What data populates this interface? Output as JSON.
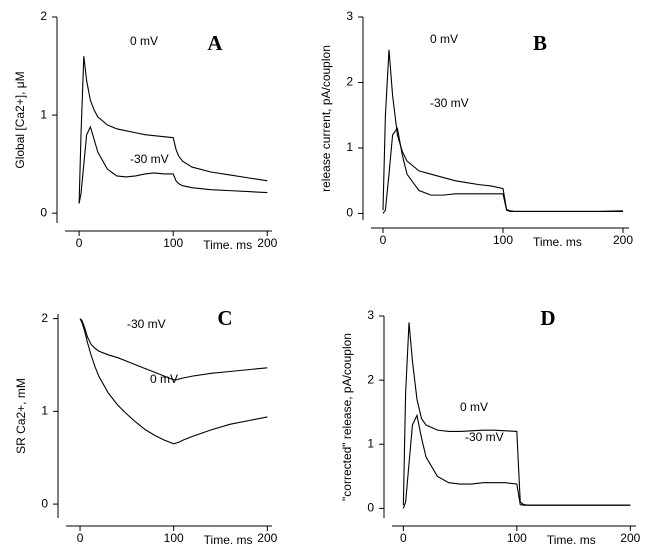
{
  "chart_data": [
    {
      "type": "line",
      "title": "A",
      "y_label": "Global [Ca2+], μM",
      "x_label": "Time. ms",
      "x": [
        0,
        2,
        5,
        8,
        12,
        16,
        20,
        30,
        40,
        50,
        60,
        70,
        80,
        90,
        100,
        103,
        106,
        110,
        120,
        140,
        160,
        180,
        200
      ],
      "series": [
        {
          "name": "0 mV",
          "color": "#000000",
          "values": [
            0.1,
            0.8,
            1.6,
            1.35,
            1.15,
            1.05,
            0.98,
            0.9,
            0.86,
            0.84,
            0.82,
            0.8,
            0.79,
            0.78,
            0.77,
            0.65,
            0.58,
            0.53,
            0.47,
            0.42,
            0.39,
            0.36,
            0.33
          ]
        },
        {
          "name": "-30 mV",
          "color": "#000000",
          "values": [
            0.1,
            0.2,
            0.5,
            0.8,
            0.88,
            0.75,
            0.62,
            0.45,
            0.38,
            0.37,
            0.38,
            0.4,
            0.41,
            0.4,
            0.4,
            0.33,
            0.3,
            0.28,
            0.26,
            0.24,
            0.23,
            0.22,
            0.21
          ]
        }
      ],
      "xlim": [
        -15,
        205
      ],
      "ylim": [
        -0.1,
        2
      ],
      "xticks": [
        0,
        100,
        200
      ],
      "yticks": [
        0,
        1,
        2
      ]
    },
    {
      "type": "line",
      "title": "B",
      "y_label": "release current, pA/couplon",
      "x_label": "Time. ms",
      "x": [
        0,
        2,
        5,
        8,
        12,
        16,
        20,
        30,
        40,
        50,
        60,
        70,
        80,
        90,
        100,
        103,
        106,
        110,
        120,
        140,
        160,
        180,
        200
      ],
      "series": [
        {
          "name": "0 mV",
          "color": "#000000",
          "values": [
            0.05,
            1.5,
            2.5,
            1.8,
            1.2,
            0.95,
            0.8,
            0.65,
            0.6,
            0.55,
            0.5,
            0.47,
            0.44,
            0.42,
            0.38,
            0.06,
            0.04,
            0.03,
            0.03,
            0.03,
            0.03,
            0.03,
            0.04
          ]
        },
        {
          "name": "-30 mV",
          "color": "#000000",
          "values": [
            0.0,
            0.05,
            0.6,
            1.2,
            1.3,
            0.9,
            0.6,
            0.35,
            0.28,
            0.28,
            0.3,
            0.3,
            0.3,
            0.3,
            0.3,
            0.05,
            0.03,
            0.03,
            0.03,
            0.03,
            0.03,
            0.03,
            0.03
          ]
        }
      ],
      "xlim": [
        -10,
        205
      ],
      "ylim": [
        -0.1,
        3
      ],
      "xticks": [
        0,
        100,
        200
      ],
      "yticks": [
        0,
        1,
        2,
        3
      ]
    },
    {
      "type": "line",
      "title": "C",
      "y_label": "SR Ca2+, mM",
      "x_label": "Time. ms",
      "x": [
        0,
        2,
        5,
        8,
        12,
        16,
        20,
        30,
        40,
        50,
        60,
        70,
        80,
        90,
        100,
        103,
        106,
        110,
        120,
        140,
        160,
        180,
        200
      ],
      "series": [
        {
          "name": "-30 mV",
          "color": "#000000",
          "values": [
            2.0,
            1.98,
            1.9,
            1.8,
            1.72,
            1.68,
            1.65,
            1.61,
            1.58,
            1.54,
            1.5,
            1.46,
            1.42,
            1.38,
            1.34,
            1.34,
            1.35,
            1.36,
            1.38,
            1.41,
            1.43,
            1.45,
            1.47
          ]
        },
        {
          "name": "0 mV",
          "color": "#000000",
          "values": [
            2.0,
            1.96,
            1.86,
            1.74,
            1.6,
            1.48,
            1.38,
            1.2,
            1.07,
            0.97,
            0.88,
            0.8,
            0.74,
            0.69,
            0.65,
            0.66,
            0.67,
            0.69,
            0.73,
            0.8,
            0.86,
            0.9,
            0.94
          ]
        }
      ],
      "xlim": [
        -15,
        205
      ],
      "ylim": [
        -0.15,
        2.05
      ],
      "xticks": [
        0,
        100,
        200
      ],
      "yticks": [
        0,
        1,
        2
      ]
    },
    {
      "type": "line",
      "title": "D",
      "y_label": "\"corrected\" release, pA/couplon",
      "x_label": "Time. ms",
      "x": [
        0,
        2,
        5,
        8,
        12,
        16,
        20,
        30,
        40,
        50,
        60,
        70,
        80,
        90,
        100,
        103,
        106,
        110,
        120,
        140,
        160,
        180,
        200
      ],
      "series": [
        {
          "name": "0 mV",
          "color": "#000000",
          "values": [
            0.05,
            1.8,
            2.9,
            2.3,
            1.7,
            1.4,
            1.3,
            1.22,
            1.2,
            1.2,
            1.21,
            1.22,
            1.22,
            1.21,
            1.2,
            0.1,
            0.06,
            0.05,
            0.05,
            0.05,
            0.05,
            0.05,
            0.05
          ]
        },
        {
          "name": "-30 mV",
          "color": "#000000",
          "values": [
            0.0,
            0.1,
            0.7,
            1.3,
            1.45,
            1.1,
            0.8,
            0.5,
            0.4,
            0.38,
            0.38,
            0.4,
            0.4,
            0.4,
            0.38,
            0.06,
            0.05,
            0.05,
            0.05,
            0.05,
            0.05,
            0.05,
            0.05
          ]
        }
      ],
      "xlim": [
        -10,
        205
      ],
      "ylim": [
        -0.15,
        3
      ],
      "xticks": [
        0,
        100,
        200
      ],
      "yticks": [
        0,
        1,
        2,
        3
      ]
    }
  ]
}
